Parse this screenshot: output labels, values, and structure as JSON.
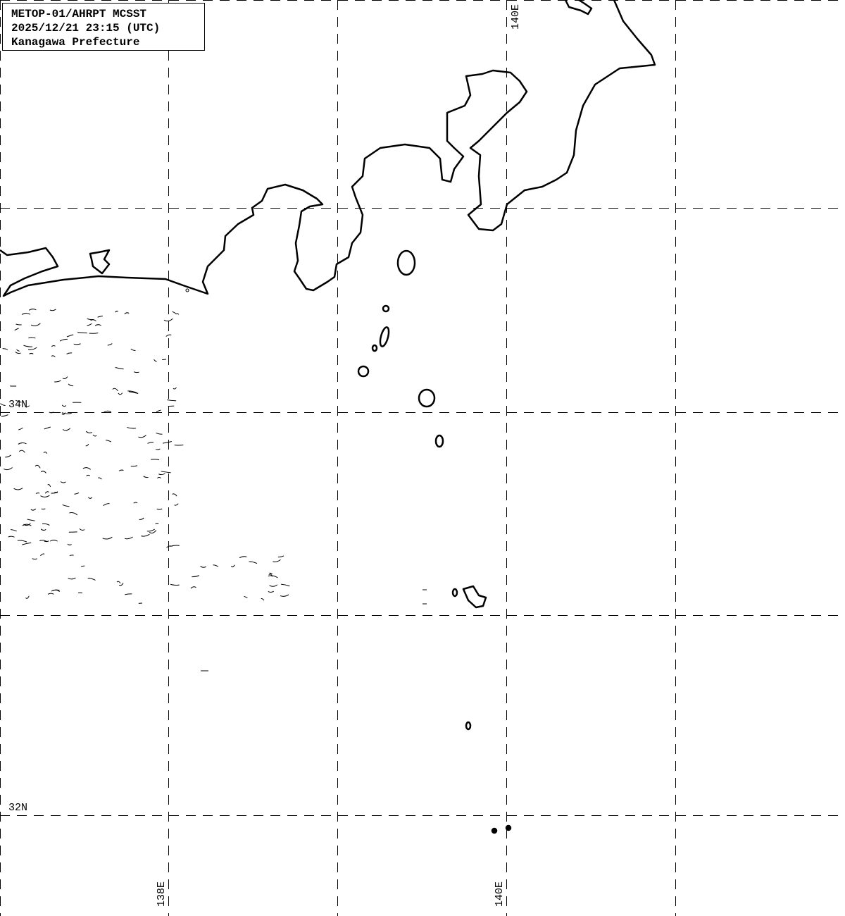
{
  "title": {
    "line1": "METOP-01/AHRPT MCSST",
    "line2": "2025/12/21 23:15 (UTC)",
    "line3": "Kanagawa Prefecture"
  },
  "grid": {
    "lat_labels": [
      "34N",
      "32N"
    ],
    "lon_labels_bottom": [
      "138E",
      "140E"
    ],
    "lon_label_top": "140E",
    "style": "dashed"
  },
  "colors": {
    "coastline": "#000000",
    "background": "#ffffff",
    "grid": "#000000"
  }
}
